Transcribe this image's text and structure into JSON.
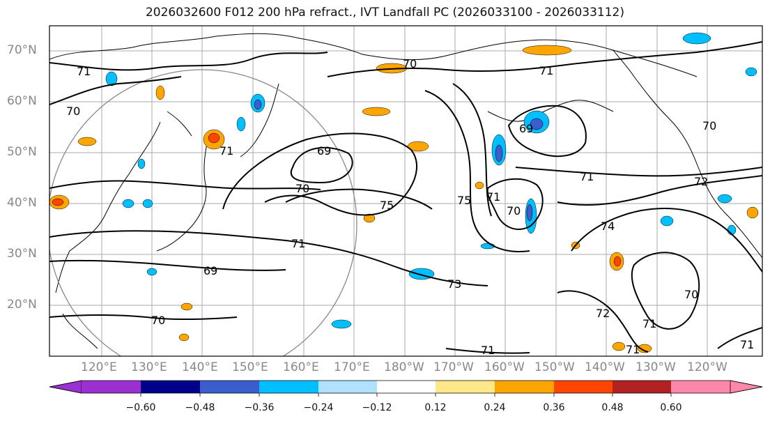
{
  "title": "2026032600 F012 200 hPa refract., IVT Landfall PC (2026033100 - 2026033112)",
  "map": {
    "lat_labels": [
      "70°N",
      "60°N",
      "50°N",
      "40°N",
      "30°N",
      "20°N"
    ],
    "lon_labels": [
      "120°E",
      "130°E",
      "140°E",
      "150°E",
      "160°E",
      "170°E",
      "180°W",
      "170°W",
      "160°W",
      "150°W",
      "140°W",
      "130°W",
      "120°W"
    ],
    "contour_labels": [
      "71",
      "70",
      "70",
      "71",
      "69",
      "70",
      "75",
      "75",
      "71",
      "70",
      "69",
      "71",
      "70",
      "72",
      "74",
      "71",
      "69",
      "73",
      "72",
      "70",
      "71",
      "71",
      "71",
      "70",
      "71",
      "71"
    ]
  },
  "colorbar": {
    "ticks": [
      "−0.60",
      "−0.48",
      "−0.36",
      "−0.24",
      "−0.12",
      "0.12",
      "0.24",
      "0.36",
      "0.48",
      "0.60"
    ],
    "colors": [
      "#9b30d0",
      "#00008b",
      "#3a5fcd",
      "#00bfff",
      "#b0e2ff",
      "#ffffff",
      "#ffe88a",
      "#ffa500",
      "#ff4500",
      "#b22222",
      "#ff88aa"
    ]
  }
}
